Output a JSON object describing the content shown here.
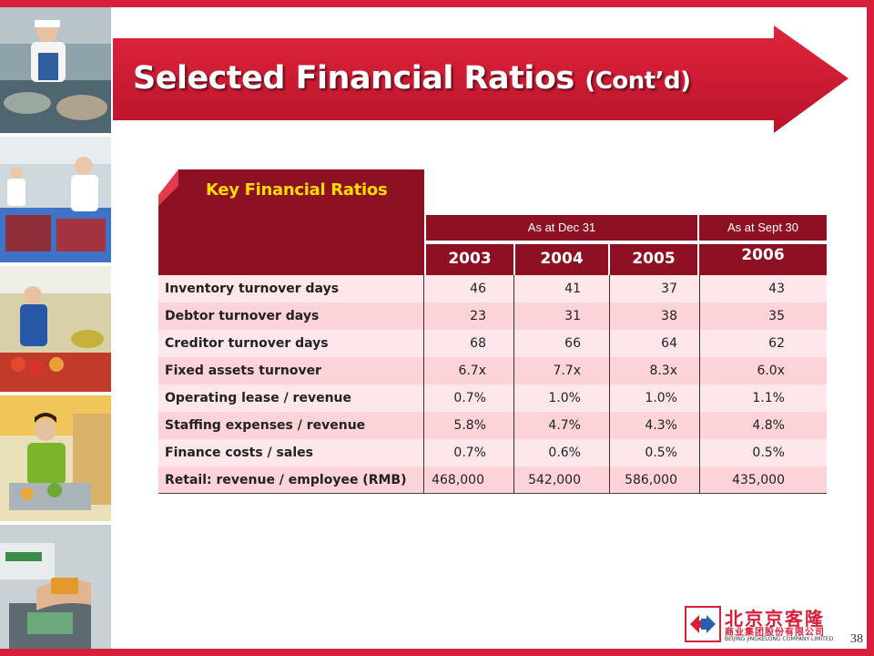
{
  "slide": {
    "title": "Selected Financial Ratios",
    "title_suffix": "(Cont’d)",
    "section_label": "Key Financial Ratios",
    "page_number": "38",
    "accent_color": "#d71f3a",
    "header_color": "#8d1023"
  },
  "table": {
    "period_headers": [
      "As at Dec 31",
      "As at Sept 30"
    ],
    "years": [
      "2003",
      "2004",
      "2005",
      "2006"
    ],
    "rows": [
      {
        "metric": "Inventory turnover days",
        "values": [
          "46",
          "41",
          "37",
          "43"
        ]
      },
      {
        "metric": "Debtor turnover days",
        "values": [
          "23",
          "31",
          "38",
          "35"
        ]
      },
      {
        "metric": "Creditor turnover days",
        "values": [
          "68",
          "66",
          "64",
          "62"
        ]
      },
      {
        "metric": "Fixed assets turnover",
        "values": [
          "6.7x",
          "7.7x",
          "8.3x",
          "6.0x"
        ]
      },
      {
        "metric": "Operating lease / revenue",
        "values": [
          "0.7%",
          "1.0%",
          "1.0%",
          "1.1%"
        ]
      },
      {
        "metric": "Staffing expenses / revenue",
        "values": [
          "5.8%",
          "4.7%",
          "4.3%",
          "4.8%"
        ]
      },
      {
        "metric": "Finance costs / sales",
        "values": [
          "0.7%",
          "0.6%",
          "0.5%",
          "0.5%"
        ]
      },
      {
        "metric": "Retail: revenue / employee (RMB)",
        "values": [
          "468,000",
          "542,000",
          "586,000",
          "435,000"
        ]
      }
    ]
  },
  "logo": {
    "name_cn": "北京京客隆",
    "subtitle_cn": "商业集团股份有限公司",
    "name_en": "BEIJING JINGKELONG COMPANY LIMITED"
  }
}
